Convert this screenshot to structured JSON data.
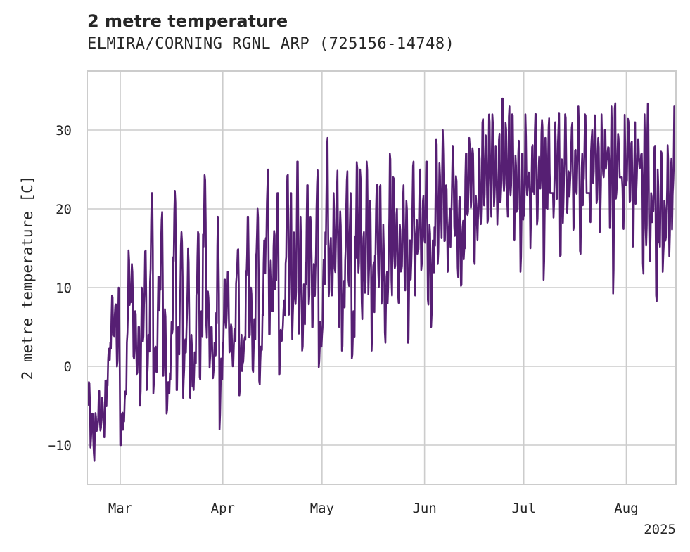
{
  "chart_data": {
    "type": "line",
    "title": "2 metre temperature",
    "subtitle": "ELMIRA/CORNING RGNL ARP (725156-14748)",
    "xlabel": "",
    "ylabel": "2 metre temperature [C]",
    "x_range": [
      "2025-02-19",
      "2025-08-16"
    ],
    "ylim": [
      -15,
      37.5
    ],
    "y_ticks": [
      -10,
      0,
      10,
      20,
      30
    ],
    "y_tick_labels": [
      "−10",
      "0",
      "10",
      "20",
      "30"
    ],
    "x_ticks": [
      "2025-03-01",
      "2025-04-01",
      "2025-05-01",
      "2025-06-01",
      "2025-07-01",
      "2025-08-01"
    ],
    "x_tick_labels": [
      "Mar",
      "Apr",
      "May",
      "Jun",
      "Jul",
      "Aug"
    ],
    "x_offset_label": "2025",
    "grid": true,
    "series": [
      {
        "color": "#561f73",
        "x": [
          "2025-02-19",
          "2025-02-20",
          "2025-02-21",
          "2025-02-22",
          "2025-02-23",
          "2025-02-24",
          "2025-02-25",
          "2025-02-26",
          "2025-02-27",
          "2025-02-28",
          "2025-03-01",
          "2025-03-02",
          "2025-03-03",
          "2025-03-04",
          "2025-03-05",
          "2025-03-06",
          "2025-03-07",
          "2025-03-08",
          "2025-03-09",
          "2025-03-10",
          "2025-03-11",
          "2025-03-12",
          "2025-03-13",
          "2025-03-14",
          "2025-03-15",
          "2025-03-16",
          "2025-03-17",
          "2025-03-18",
          "2025-03-19",
          "2025-03-20",
          "2025-03-21",
          "2025-03-22",
          "2025-03-23",
          "2025-03-24",
          "2025-03-25",
          "2025-03-26",
          "2025-03-27",
          "2025-03-28",
          "2025-03-29",
          "2025-03-30",
          "2025-03-31",
          "2025-04-01",
          "2025-04-02",
          "2025-04-03",
          "2025-04-04",
          "2025-04-05",
          "2025-04-06",
          "2025-04-07",
          "2025-04-08",
          "2025-04-09",
          "2025-04-10",
          "2025-04-11",
          "2025-04-12",
          "2025-04-13",
          "2025-04-14",
          "2025-04-15",
          "2025-04-16",
          "2025-04-17",
          "2025-04-18",
          "2025-04-19",
          "2025-04-20",
          "2025-04-21",
          "2025-04-22",
          "2025-04-23",
          "2025-04-24",
          "2025-04-25",
          "2025-04-26",
          "2025-04-27",
          "2025-04-28",
          "2025-04-29",
          "2025-04-30",
          "2025-05-01",
          "2025-05-02",
          "2025-05-03",
          "2025-05-04",
          "2025-05-05",
          "2025-05-06",
          "2025-05-07",
          "2025-05-08",
          "2025-05-09",
          "2025-05-10",
          "2025-05-11",
          "2025-05-12",
          "2025-05-13",
          "2025-05-14",
          "2025-05-15",
          "2025-05-16",
          "2025-05-17",
          "2025-05-18",
          "2025-05-19",
          "2025-05-20",
          "2025-05-21",
          "2025-05-22",
          "2025-05-23",
          "2025-05-24",
          "2025-05-25",
          "2025-05-26",
          "2025-05-27",
          "2025-05-28",
          "2025-05-29",
          "2025-05-30",
          "2025-05-31",
          "2025-06-01",
          "2025-06-02",
          "2025-06-03",
          "2025-06-04",
          "2025-06-05",
          "2025-06-06",
          "2025-06-07",
          "2025-06-08",
          "2025-06-09",
          "2025-06-10",
          "2025-06-11",
          "2025-06-12",
          "2025-06-13",
          "2025-06-14",
          "2025-06-15",
          "2025-06-16",
          "2025-06-17",
          "2025-06-18",
          "2025-06-19",
          "2025-06-20",
          "2025-06-21",
          "2025-06-22",
          "2025-06-23",
          "2025-06-24",
          "2025-06-25",
          "2025-06-26",
          "2025-06-27",
          "2025-06-28",
          "2025-06-29",
          "2025-06-30",
          "2025-07-01",
          "2025-07-02",
          "2025-07-03",
          "2025-07-04",
          "2025-07-05",
          "2025-07-06",
          "2025-07-07",
          "2025-07-08",
          "2025-07-09",
          "2025-07-10",
          "2025-07-11",
          "2025-07-12",
          "2025-07-13",
          "2025-07-14",
          "2025-07-15",
          "2025-07-16",
          "2025-07-17",
          "2025-07-18",
          "2025-07-19",
          "2025-07-20",
          "2025-07-21",
          "2025-07-22",
          "2025-07-23",
          "2025-07-24",
          "2025-07-25",
          "2025-07-26",
          "2025-07-27",
          "2025-07-28",
          "2025-07-29",
          "2025-07-30",
          "2025-07-31",
          "2025-08-01",
          "2025-08-02",
          "2025-08-03",
          "2025-08-04",
          "2025-08-05",
          "2025-08-06",
          "2025-08-07",
          "2025-08-08",
          "2025-08-09",
          "2025-08-10",
          "2025-08-11",
          "2025-08-12",
          "2025-08-13",
          "2025-08-14",
          "2025-08-15"
        ],
        "min": [
          -5,
          -10,
          -12,
          -9,
          -8,
          -9,
          -3,
          2,
          4,
          0,
          -10,
          -7,
          2,
          8,
          0,
          -2,
          -5,
          5,
          -3,
          12,
          -4,
          -2,
          10,
          -1,
          -6,
          -2,
          14,
          -3,
          9,
          -4,
          5,
          -5,
          -3,
          8,
          -2,
          15,
          4,
          0,
          -2,
          6,
          -8,
          3,
          5,
          1,
          0,
          10,
          -4,
          0,
          11,
          4,
          -2,
          13,
          -3,
          5,
          14,
          3,
          7,
          10,
          -1,
          4,
          12,
          8,
          3,
          10,
          5,
          2,
          11,
          9,
          5,
          12,
          -1,
          4,
          14,
          7,
          9,
          13,
          5,
          2,
          12,
          10,
          0,
          14,
          12,
          6,
          11,
          9,
          2,
          13,
          10,
          7,
          3,
          11,
          9,
          13,
          8,
          12,
          10,
          3,
          14,
          9,
          13,
          11,
          15,
          8,
          5,
          16,
          13,
          17,
          14,
          12,
          18,
          16,
          11,
          9,
          15,
          17,
          19,
          13,
          16,
          18,
          20,
          17,
          19,
          21,
          18,
          20,
          22,
          19,
          21,
          16,
          20,
          12,
          19,
          22,
          15,
          21,
          18,
          23,
          11,
          20,
          24,
          17,
          21,
          13,
          22,
          19,
          24,
          16,
          23,
          12,
          21,
          25,
          18,
          22,
          20,
          17,
          23,
          26,
          19,
          8,
          22,
          24,
          16,
          21,
          20,
          14,
          22,
          25,
          10,
          17,
          13,
          19,
          7,
          15,
          12,
          18,
          13,
          21,
          14,
          18,
          13,
          16
        ],
        "max": [
          -2,
          -6,
          -5,
          -3,
          -4,
          -1,
          3,
          9,
          8,
          10,
          -5,
          -3,
          15,
          13,
          7,
          5,
          10,
          16,
          4,
          22,
          4,
          12,
          20,
          8,
          -2,
          6,
          23,
          5,
          18,
          4,
          15,
          4,
          2,
          18,
          7,
          25,
          10,
          5,
          3,
          19,
          1,
          11,
          12,
          6,
          5,
          16,
          4,
          4,
          19,
          10,
          6,
          21,
          4,
          16,
          25,
          14,
          18,
          22,
          6,
          9,
          27,
          22,
          17,
          26,
          19,
          11,
          23,
          19,
          13,
          26,
          6,
          14,
          29,
          17,
          22,
          25,
          21,
          11,
          25,
          22,
          7,
          27,
          25,
          19,
          26,
          21,
          14,
          25,
          23,
          18,
          12,
          27,
          24,
          20,
          18,
          23,
          21,
          16,
          26,
          19,
          25,
          22,
          26,
          18,
          16,
          29,
          27,
          30,
          24,
          20,
          28,
          26,
          22,
          19,
          27,
          29,
          30,
          23,
          28,
          33,
          31,
          34,
          32,
          28,
          30,
          34,
          31,
          33,
          32,
          29,
          31,
          27,
          32,
          25,
          30,
          33,
          27,
          32,
          29,
          33,
          22,
          31,
          33,
          28,
          32,
          26,
          31,
          30,
          33,
          27,
          32,
          22,
          31,
          33,
          29,
          32,
          30,
          28,
          33,
          34,
          30,
          24,
          32,
          33,
          29,
          31,
          30,
          27,
          32,
          34,
          22,
          28,
          25,
          30,
          21,
          29,
          27,
          33,
          29,
          34,
          29,
          35,
          29,
          19
        ]
      }
    ]
  }
}
